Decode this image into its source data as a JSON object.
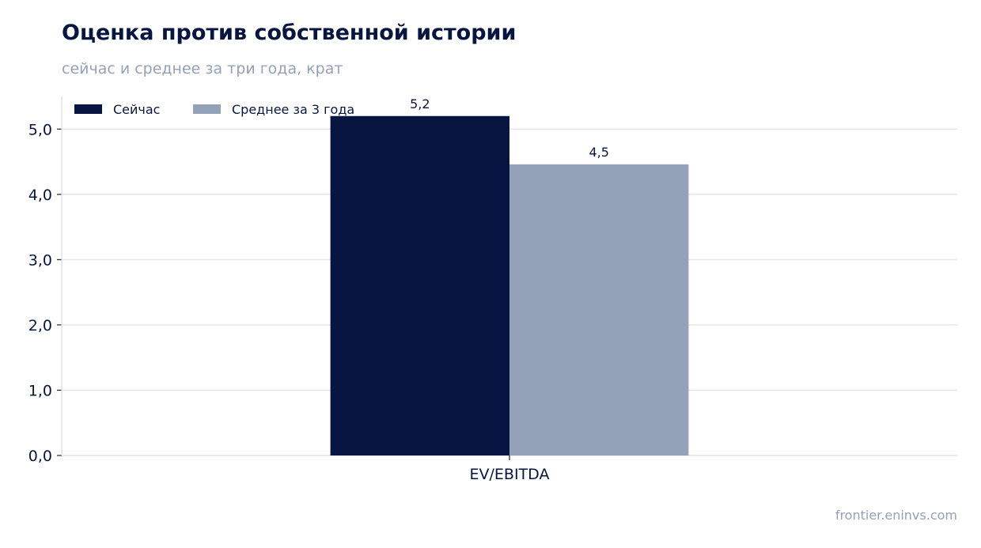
{
  "header": {
    "title": "Оценка против собственной истории",
    "subtitle": "сейчас и среднее за три года, крат"
  },
  "footer": {
    "source": "frontier.eninvs.com"
  },
  "colors": {
    "current": "#071640",
    "average": "#93a2b8",
    "grid": "#e3e6ec",
    "axis": "#d7dbe3"
  },
  "chart_data": {
    "type": "bar",
    "categories": [
      "EV/EBITDA"
    ],
    "series": [
      {
        "name": "Сейчас",
        "values": [
          5.2
        ],
        "labels": [
          "5,2"
        ]
      },
      {
        "name": "Среднее за 3 года",
        "values": [
          4.46
        ],
        "labels": [
          "4,5"
        ]
      }
    ],
    "ylim": [
      0,
      5.5
    ],
    "yticks": [
      0,
      1,
      2,
      3,
      4,
      5
    ],
    "ytick_labels": [
      "0,0",
      "1,0",
      "2,0",
      "3,0",
      "4,0",
      "5,0"
    ],
    "grid": true,
    "legend_position": "top-left"
  }
}
